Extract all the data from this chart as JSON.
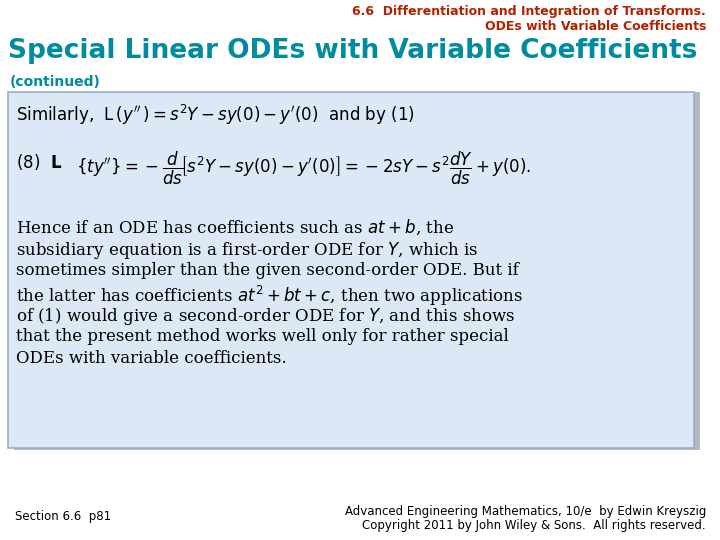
{
  "bg_color": "#ffffff",
  "header_color": "#b22000",
  "header_text_line1": "6.6  Differentiation and Integration of Transforms.",
  "header_text_line2": "ODEs with Variable Coefficients",
  "title_text": "Special Linear ODEs with Variable Coefficients",
  "title_color": "#008b9e",
  "continued_text": "(continued)",
  "continued_color": "#008b9e",
  "box_bg": "#dce8f5",
  "box_border": "#9ab0c8",
  "shadow_color": "#b0b8c0",
  "footer_left": "Section 6.6  p81",
  "footer_right_line1": "Advanced Engineering Mathematics, 10/e  by Edwin Kreyszig",
  "footer_right_line2": "Copyright 2011 by John Wiley & Sons.  All rights reserved.",
  "text_color": "#000000",
  "header_fontsize": 9,
  "title_fontsize": 19,
  "continued_fontsize": 10,
  "content_fontsize": 12,
  "footer_fontsize": 8.5
}
